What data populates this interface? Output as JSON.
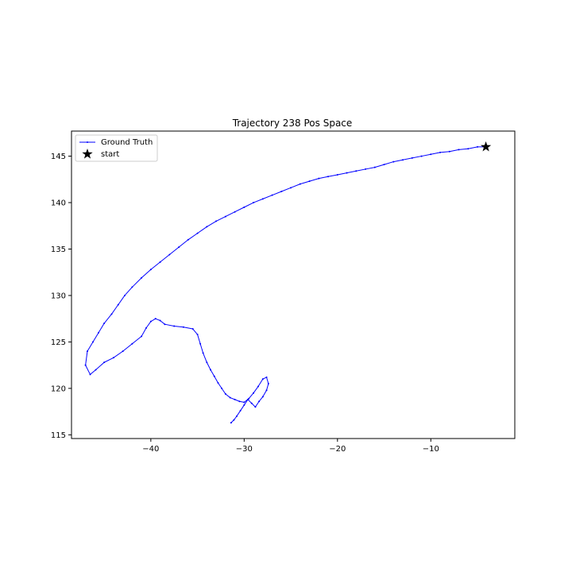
{
  "chart_data": {
    "type": "line",
    "title": "Trajectory 238 Pos Space",
    "xlabel": "",
    "ylabel": "",
    "xlim": [
      -48.5,
      -1.0
    ],
    "ylim": [
      114.6,
      147.7
    ],
    "xticks": [
      -40,
      -30,
      -20,
      -10
    ],
    "yticks": [
      115,
      120,
      125,
      130,
      135,
      140,
      145
    ],
    "grid": false,
    "legend": {
      "placement": "upper-left",
      "entries": [
        "Ground Truth",
        "start"
      ]
    },
    "series": [
      {
        "name": "Ground Truth",
        "color": "#0000ff",
        "marker": "point",
        "x": [
          -4.1,
          -5.0,
          -6.0,
          -7.0,
          -8.0,
          -9.0,
          -10.0,
          -11.0,
          -12.0,
          -13.0,
          -14.0,
          -15.0,
          -16.0,
          -17.0,
          -18.0,
          -19.0,
          -20.0,
          -21.0,
          -22.0,
          -23.0,
          -24.0,
          -25.0,
          -26.0,
          -27.0,
          -28.0,
          -29.0,
          -30.0,
          -31.0,
          -32.0,
          -33.0,
          -34.0,
          -35.0,
          -36.0,
          -37.0,
          -38.0,
          -39.0,
          -40.0,
          -41.0,
          -42.0,
          -42.8,
          -43.5,
          -44.2,
          -45.0,
          -45.6,
          -46.2,
          -46.8,
          -47.0,
          -46.5,
          -45.9,
          -45.0,
          -44.0,
          -43.0,
          -42.0,
          -41.0,
          -40.5,
          -40.0,
          -39.5,
          -39.0,
          -38.5,
          -37.5,
          -36.5,
          -35.5,
          -35.0,
          -34.7,
          -34.4,
          -34.0,
          -33.6,
          -33.2,
          -32.8,
          -32.4,
          -32.0,
          -31.5,
          -31.0,
          -30.5,
          -30.0,
          -29.5,
          -29.0,
          -28.5,
          -28.0,
          -27.6,
          -27.4,
          -27.6,
          -28.0,
          -28.4,
          -28.8,
          -29.2,
          -29.6,
          -30.0,
          -30.4,
          -30.8,
          -31.1,
          -31.4
        ],
        "y": [
          146.0,
          146.0,
          145.8,
          145.7,
          145.5,
          145.4,
          145.2,
          145.0,
          144.8,
          144.6,
          144.4,
          144.1,
          143.8,
          143.6,
          143.4,
          143.2,
          143.0,
          142.8,
          142.6,
          142.3,
          142.0,
          141.6,
          141.2,
          140.8,
          140.4,
          140.0,
          139.5,
          139.0,
          138.5,
          138.0,
          137.4,
          136.7,
          136.0,
          135.2,
          134.4,
          133.6,
          132.8,
          131.9,
          130.9,
          130.0,
          129.0,
          128.0,
          127.0,
          126.0,
          125.0,
          124.0,
          122.5,
          121.5,
          122.0,
          122.8,
          123.3,
          124.0,
          124.8,
          125.6,
          126.5,
          127.2,
          127.5,
          127.3,
          126.9,
          126.7,
          126.6,
          126.4,
          125.8,
          124.8,
          123.8,
          122.8,
          122.0,
          121.3,
          120.6,
          120.0,
          119.4,
          119.0,
          118.8,
          118.6,
          118.5,
          118.9,
          119.5,
          120.2,
          121.0,
          121.2,
          120.5,
          119.8,
          119.1,
          118.6,
          118.0,
          118.4,
          118.8,
          118.2,
          117.6,
          117.0,
          116.6,
          116.3
        ]
      }
    ],
    "start_point": {
      "name": "start",
      "x": -4.1,
      "y": 146.0,
      "marker": "star",
      "color": "#000000"
    }
  }
}
